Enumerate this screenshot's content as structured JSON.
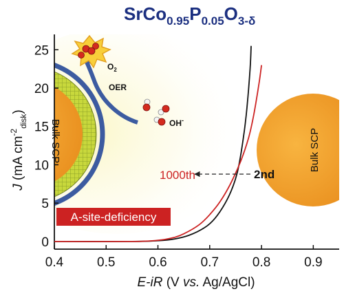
{
  "chart_data": {
    "type": "line",
    "title": {
      "base1": "SrCo",
      "sub1": "0.95",
      "base2": "P",
      "sub2": "0.05",
      "base3": "O",
      "sub3": "3-δ"
    },
    "xlabel": {
      "main": "E-iR",
      "rest": " (V ",
      "vs": "vs.",
      "tail": " Ag/AgCl)"
    },
    "ylabel": {
      "j": "J",
      "open": " (mA cm",
      "sup": "-2",
      "sub": "disk",
      "close": ")"
    },
    "xlim": [
      0.4,
      0.95
    ],
    "ylim": [
      -1,
      27
    ],
    "x_ticks": [
      "0.4",
      "0.5",
      "0.6",
      "0.7",
      "0.8",
      "0.9"
    ],
    "y_ticks": [
      "0",
      "5",
      "10",
      "15",
      "20",
      "25"
    ],
    "grid": false,
    "series": [
      {
        "name": "2nd",
        "color": "#111111",
        "x": [
          0.4,
          0.55,
          0.6,
          0.63,
          0.66,
          0.69,
          0.71,
          0.73,
          0.745,
          0.755,
          0.765,
          0.772,
          0.778,
          0.78
        ],
        "y": [
          0,
          0,
          0.1,
          0.3,
          0.8,
          1.8,
          3.0,
          5.0,
          7.2,
          9.5,
          13.5,
          17.5,
          22.5,
          25.5
        ]
      },
      {
        "name": "1000th",
        "color": "#cc2222",
        "x": [
          0.4,
          0.55,
          0.6,
          0.63,
          0.65,
          0.68,
          0.7,
          0.72,
          0.74,
          0.76,
          0.775,
          0.785,
          0.795,
          0.8
        ],
        "y": [
          0,
          0,
          0.15,
          0.5,
          1.0,
          2.2,
          3.5,
          5.2,
          7.5,
          10.5,
          13.5,
          16.5,
          20.5,
          23.0
        ]
      }
    ],
    "annotations": {
      "o2": "O",
      "o2_sub": "2",
      "oer": "OER",
      "oh": "OH",
      "oh_sup": "-",
      "bulk_left": "Bulk SCP",
      "bulk_right": "Bulk SCP",
      "label_1000th": "1000th",
      "label_2nd": "2nd",
      "deficiency": "A-site-deficiency"
    },
    "colors": {
      "title": "#1b2f80",
      "bulk_orange": "#f2a028",
      "shell_green": "#c6d63a",
      "ring_blue": "#3c5ba0",
      "deficiency_red": "#cc2222",
      "oxygen_red": "#d42a1e",
      "hydrogen_white": "#f4f4f4",
      "burst_yellow": "#f8cf3a"
    }
  }
}
